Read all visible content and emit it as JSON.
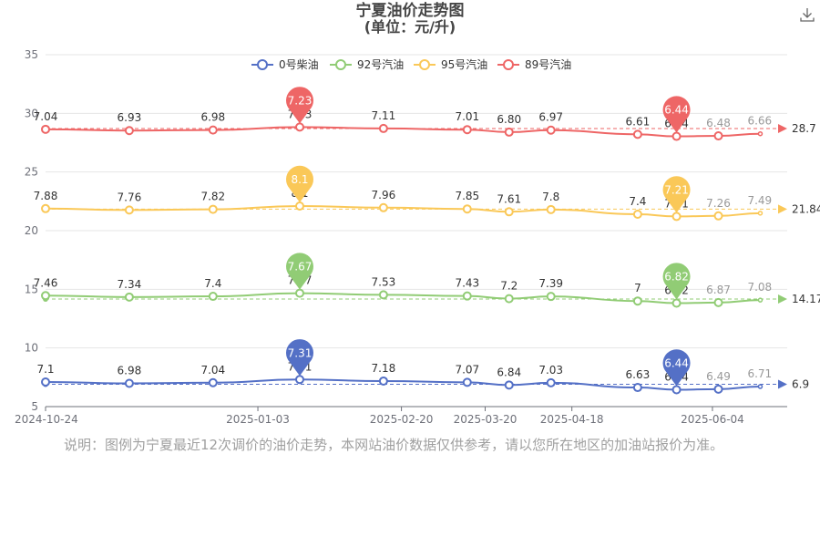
{
  "page": {
    "title_line1": "宁夏油价走势图",
    "title_line2": "(单位：元/升)",
    "note": "说明：图例为宁夏最近12次调价的油价走势，本网站油价数据仅供参考，请以您所在地区的加油站报价为准。",
    "download_icon": "download-icon"
  },
  "chart_data": {
    "type": "line",
    "title": "宁夏油价走势图",
    "subtitle": "(单位：元/升)",
    "x_axis_type": "date",
    "xlim": [
      "2024-10-24",
      "2025-06-29"
    ],
    "x_tick_labels": [
      "2024-10-24",
      "2025-01-03",
      "2025-02-20",
      "2025-03-20",
      "2025-04-18",
      "2025-06-04"
    ],
    "x": [
      "2024-10-24",
      "2024-11-21",
      "2024-12-19",
      "2025-01-17",
      "2025-02-14",
      "2025-03-14",
      "2025-03-28",
      "2025-04-11",
      "2025-05-10",
      "2025-05-23",
      "2025-06-06",
      "2025-06-20"
    ],
    "y_axis_note": "each series is shown stacked with a vertical offset; y ticks are the printed axis labels",
    "y_ticks": [
      "5",
      "10",
      "15",
      "20",
      "25",
      "30",
      "35"
    ],
    "grid": true,
    "legend": "top",
    "series": [
      {
        "name": "0号柴油",
        "color": "#5470c6",
        "values": [
          7.1,
          6.98,
          7.04,
          7.31,
          7.18,
          7.07,
          6.84,
          7.03,
          6.63,
          6.44,
          6.49,
          6.71
        ],
        "labels": [
          "7.1",
          "6.98",
          "7.04",
          "7.31",
          "7.18",
          "7.07",
          "6.84",
          "7.03",
          "6.63",
          "6.44",
          "6.49",
          "6.71"
        ],
        "max_label": "7.31",
        "min_label": "6.44",
        "mark_line_label": "6.9"
      },
      {
        "name": "92号汽油",
        "color": "#91cc75",
        "values": [
          7.46,
          7.34,
          7.4,
          7.67,
          7.53,
          7.43,
          7.2,
          7.39,
          7.0,
          6.82,
          6.87,
          7.08
        ],
        "labels": [
          "7.46",
          "7.34",
          "7.4",
          "7.67",
          "7.53",
          "7.43",
          "7.2",
          "7.39",
          "7",
          "6.82",
          "6.87",
          "7.08"
        ],
        "max_label": "7.67",
        "min_label": "6.82",
        "mark_line_label": "14.17"
      },
      {
        "name": "95号汽油",
        "color": "#fac858",
        "values": [
          7.88,
          7.76,
          7.82,
          8.1,
          7.96,
          7.85,
          7.61,
          7.8,
          7.4,
          7.21,
          7.26,
          7.49
        ],
        "labels": [
          "7.88",
          "7.76",
          "7.82",
          "8.1",
          "7.96",
          "7.85",
          "7.61",
          "7.8",
          "7.4",
          "7.21",
          "7.26",
          "7.49"
        ],
        "max_label": "8.1",
        "min_label": "7.21",
        "mark_line_label": "21.84"
      },
      {
        "name": "89号汽油",
        "color": "#ee6666",
        "values": [
          7.04,
          6.93,
          6.98,
          7.23,
          7.11,
          7.01,
          6.8,
          6.97,
          6.61,
          6.44,
          6.48,
          6.66
        ],
        "labels": [
          "7.04",
          "6.93",
          "6.98",
          "7.23",
          "7.11",
          "7.01",
          "6.80",
          "6.97",
          "6.61",
          "6.44",
          "6.48",
          "6.66"
        ],
        "max_label": "7.23",
        "min_label": "6.44",
        "mark_line_label": "28.7"
      }
    ]
  }
}
